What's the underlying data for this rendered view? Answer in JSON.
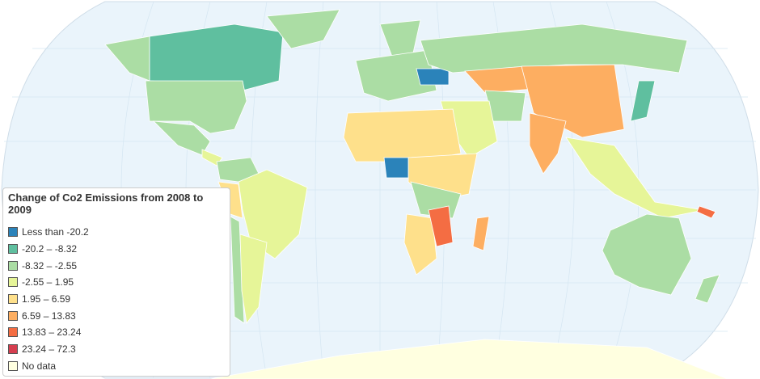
{
  "legend": {
    "title": "Change of Co2 Emissions from 2008 to 2009",
    "items": [
      {
        "label": "Less than -20.2",
        "color": "#2b83ba"
      },
      {
        "label": "-20.2 – -8.32",
        "color": "#5fbf9f"
      },
      {
        "label": "-8.32 – -2.55",
        "color": "#abdda4"
      },
      {
        "label": "-2.55 – 1.95",
        "color": "#e6f598"
      },
      {
        "label": "1.95 – 6.59",
        "color": "#fee08b"
      },
      {
        "label": "6.59 – 13.83",
        "color": "#fdae61"
      },
      {
        "label": "13.83 – 23.24",
        "color": "#f46d43"
      },
      {
        "label": "23.24 – 72.3",
        "color": "#d53e4f"
      },
      {
        "label": "No data",
        "color": "#ffffe0"
      }
    ]
  }
}
